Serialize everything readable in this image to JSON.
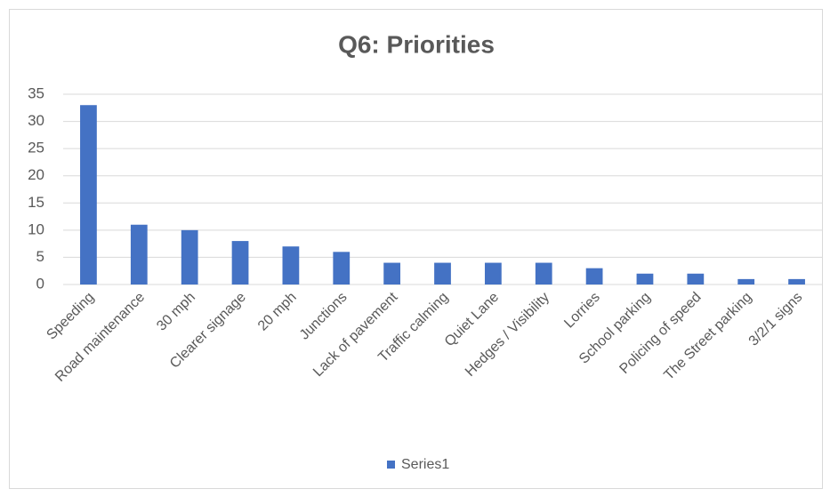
{
  "chart_data": {
    "type": "bar",
    "title": "Q6: Priorities",
    "categories": [
      "Speeding",
      "Road maintenance",
      "30 mph",
      "Clearer signage",
      "20 mph",
      "Junctions",
      "Lack of pavement",
      "Traffic calming",
      "Quiet Lane",
      "Hedges / Visibility",
      "Lorries",
      "School parking",
      "Policing of speed",
      "The Street parking",
      "3/2/1 signs"
    ],
    "series": [
      {
        "name": "Series1",
        "color": "#4472c4",
        "values": [
          33,
          11,
          10,
          8,
          7,
          6,
          4,
          4,
          4,
          4,
          3,
          2,
          2,
          1,
          1
        ]
      }
    ],
    "ylim": [
      0,
      35
    ],
    "yticks": [
      0,
      5,
      10,
      15,
      20,
      25,
      30,
      35
    ],
    "grid": true,
    "legend": "bottom"
  }
}
